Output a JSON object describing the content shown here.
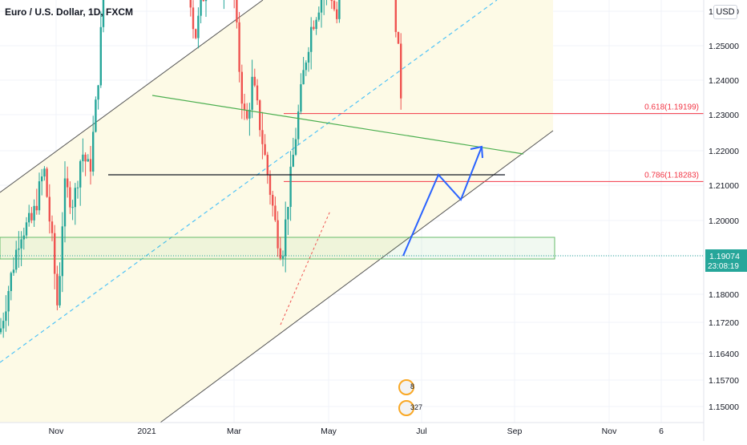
{
  "header": {
    "title": "Euro / U.S. Dollar, 1D, FXCM",
    "currency_button": "USD"
  },
  "price_badge": {
    "price": "1.19074",
    "countdown": "23:08:19",
    "color": "#26a69a"
  },
  "fib_levels": [
    {
      "label": "0.618(1.19199)",
      "value": 1.19199
    },
    {
      "label": "0.786(1.18283)",
      "value": 1.18283
    }
  ],
  "event_badges": [
    {
      "text": "8"
    },
    {
      "text": "327"
    }
  ],
  "colors": {
    "up": "#26a69a",
    "down": "#ef5350",
    "channel_fill": "#fdfae6",
    "trendline_green": "#4caf50",
    "projection": "#2962ff",
    "fib": "#f23645",
    "grid": "#f0f3fa"
  },
  "chart_data": {
    "type": "candlestick",
    "symbol": "EURUSD",
    "timeframe": "1D",
    "y_axis": {
      "ticks": [
        "1.26000",
        "1.25000",
        "1.24000",
        "1.23000",
        "1.22000",
        "1.21000",
        "1.20000",
        "1.19000",
        "1.18000",
        "1.17200",
        "1.16400",
        "1.15700",
        "1.15000"
      ]
    },
    "x_axis": {
      "ticks": [
        "Nov",
        "2021",
        "Mar",
        "May",
        "Jul",
        "Sep",
        "Nov",
        "6"
      ]
    },
    "key_levels": {
      "horizontal_resistance": 1.213,
      "last_price": 1.19074
    },
    "channel": {
      "type": "ascending parallel channel",
      "fill": "#fdfae6"
    },
    "projection_path": [
      1.1907,
      1.213,
      1.2068,
      1.2205
    ]
  }
}
